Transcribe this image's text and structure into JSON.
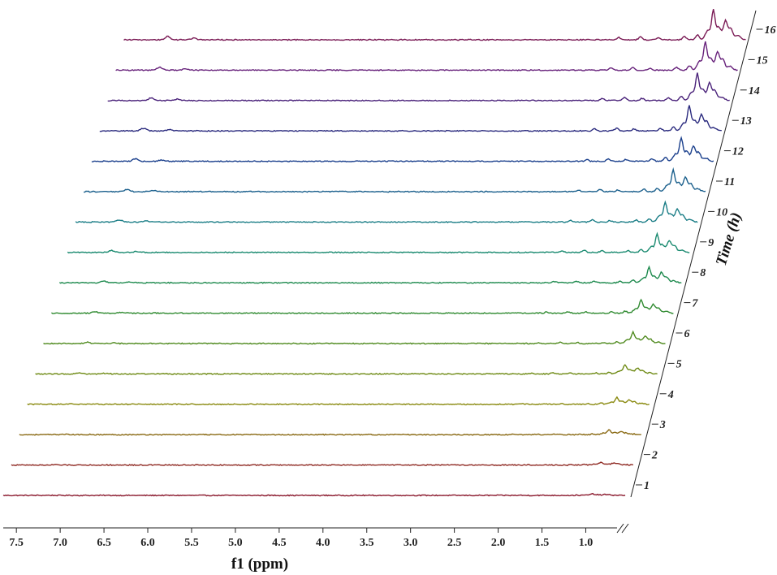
{
  "chart_data": {
    "type": "line",
    "subtype": "3d-waterfall-nmr",
    "xlabel": "f1 (ppm)",
    "zlabel": "Time (h)",
    "x_ticks": [
      "7.5",
      "7.0",
      "6.5",
      "6.0",
      "5.5",
      "5.0",
      "4.5",
      "4.0",
      "3.5",
      "3.0",
      "2.5",
      "2.0",
      "1.5",
      "1.0"
    ],
    "x_range": [
      7.65,
      0.55
    ],
    "x_axis_break": true,
    "time_ticks": [
      "1",
      "2",
      "3",
      "4",
      "5",
      "6",
      "7",
      "8",
      "9",
      "10",
      "11",
      "12",
      "13",
      "14",
      "15",
      "16"
    ],
    "grid": false,
    "legend": "none",
    "series_color_start": "#8b1a2e",
    "series_color_end": "#7a1a55",
    "series_colors": [
      "#8b1a2e",
      "#8f2a23",
      "#8a6a14",
      "#8a8a10",
      "#6e8a14",
      "#4f8a1e",
      "#2f8a30",
      "#1e8a4e",
      "#1a8a70",
      "#1a7d86",
      "#1a5f8c",
      "#1a3f8c",
      "#2a2a7e",
      "#4a227a",
      "#66207a",
      "#7a1a55"
    ],
    "peaks_ppm": {
      "aromatic": [
        7.15,
        6.85
      ],
      "mid": [
        2.0,
        1.75,
        1.55,
        1.25
      ],
      "aliphatic": [
        1.05,
        0.92,
        0.78
      ]
    },
    "series": [
      {
        "name": "1",
        "time_h": 1,
        "peak_scale": 0.05
      },
      {
        "name": "2",
        "time_h": 2,
        "peak_scale": 0.1
      },
      {
        "name": "3",
        "time_h": 3,
        "peak_scale": 0.16
      },
      {
        "name": "4",
        "time_h": 4,
        "peak_scale": 0.22
      },
      {
        "name": "5",
        "time_h": 5,
        "peak_scale": 0.3
      },
      {
        "name": "6",
        "time_h": 6,
        "peak_scale": 0.38
      },
      {
        "name": "7",
        "time_h": 7,
        "peak_scale": 0.45
      },
      {
        "name": "8",
        "time_h": 8,
        "peak_scale": 0.52
      },
      {
        "name": "9",
        "time_h": 9,
        "peak_scale": 0.6
      },
      {
        "name": "10",
        "time_h": 10,
        "peak_scale": 0.66
      },
      {
        "name": "11",
        "time_h": 11,
        "peak_scale": 0.72
      },
      {
        "name": "12",
        "time_h": 12,
        "peak_scale": 0.78
      },
      {
        "name": "13",
        "time_h": 13,
        "peak_scale": 0.84
      },
      {
        "name": "14",
        "time_h": 14,
        "peak_scale": 0.9
      },
      {
        "name": "15",
        "time_h": 15,
        "peak_scale": 0.95
      },
      {
        "name": "16",
        "time_h": 16,
        "peak_scale": 1.0
      }
    ]
  }
}
